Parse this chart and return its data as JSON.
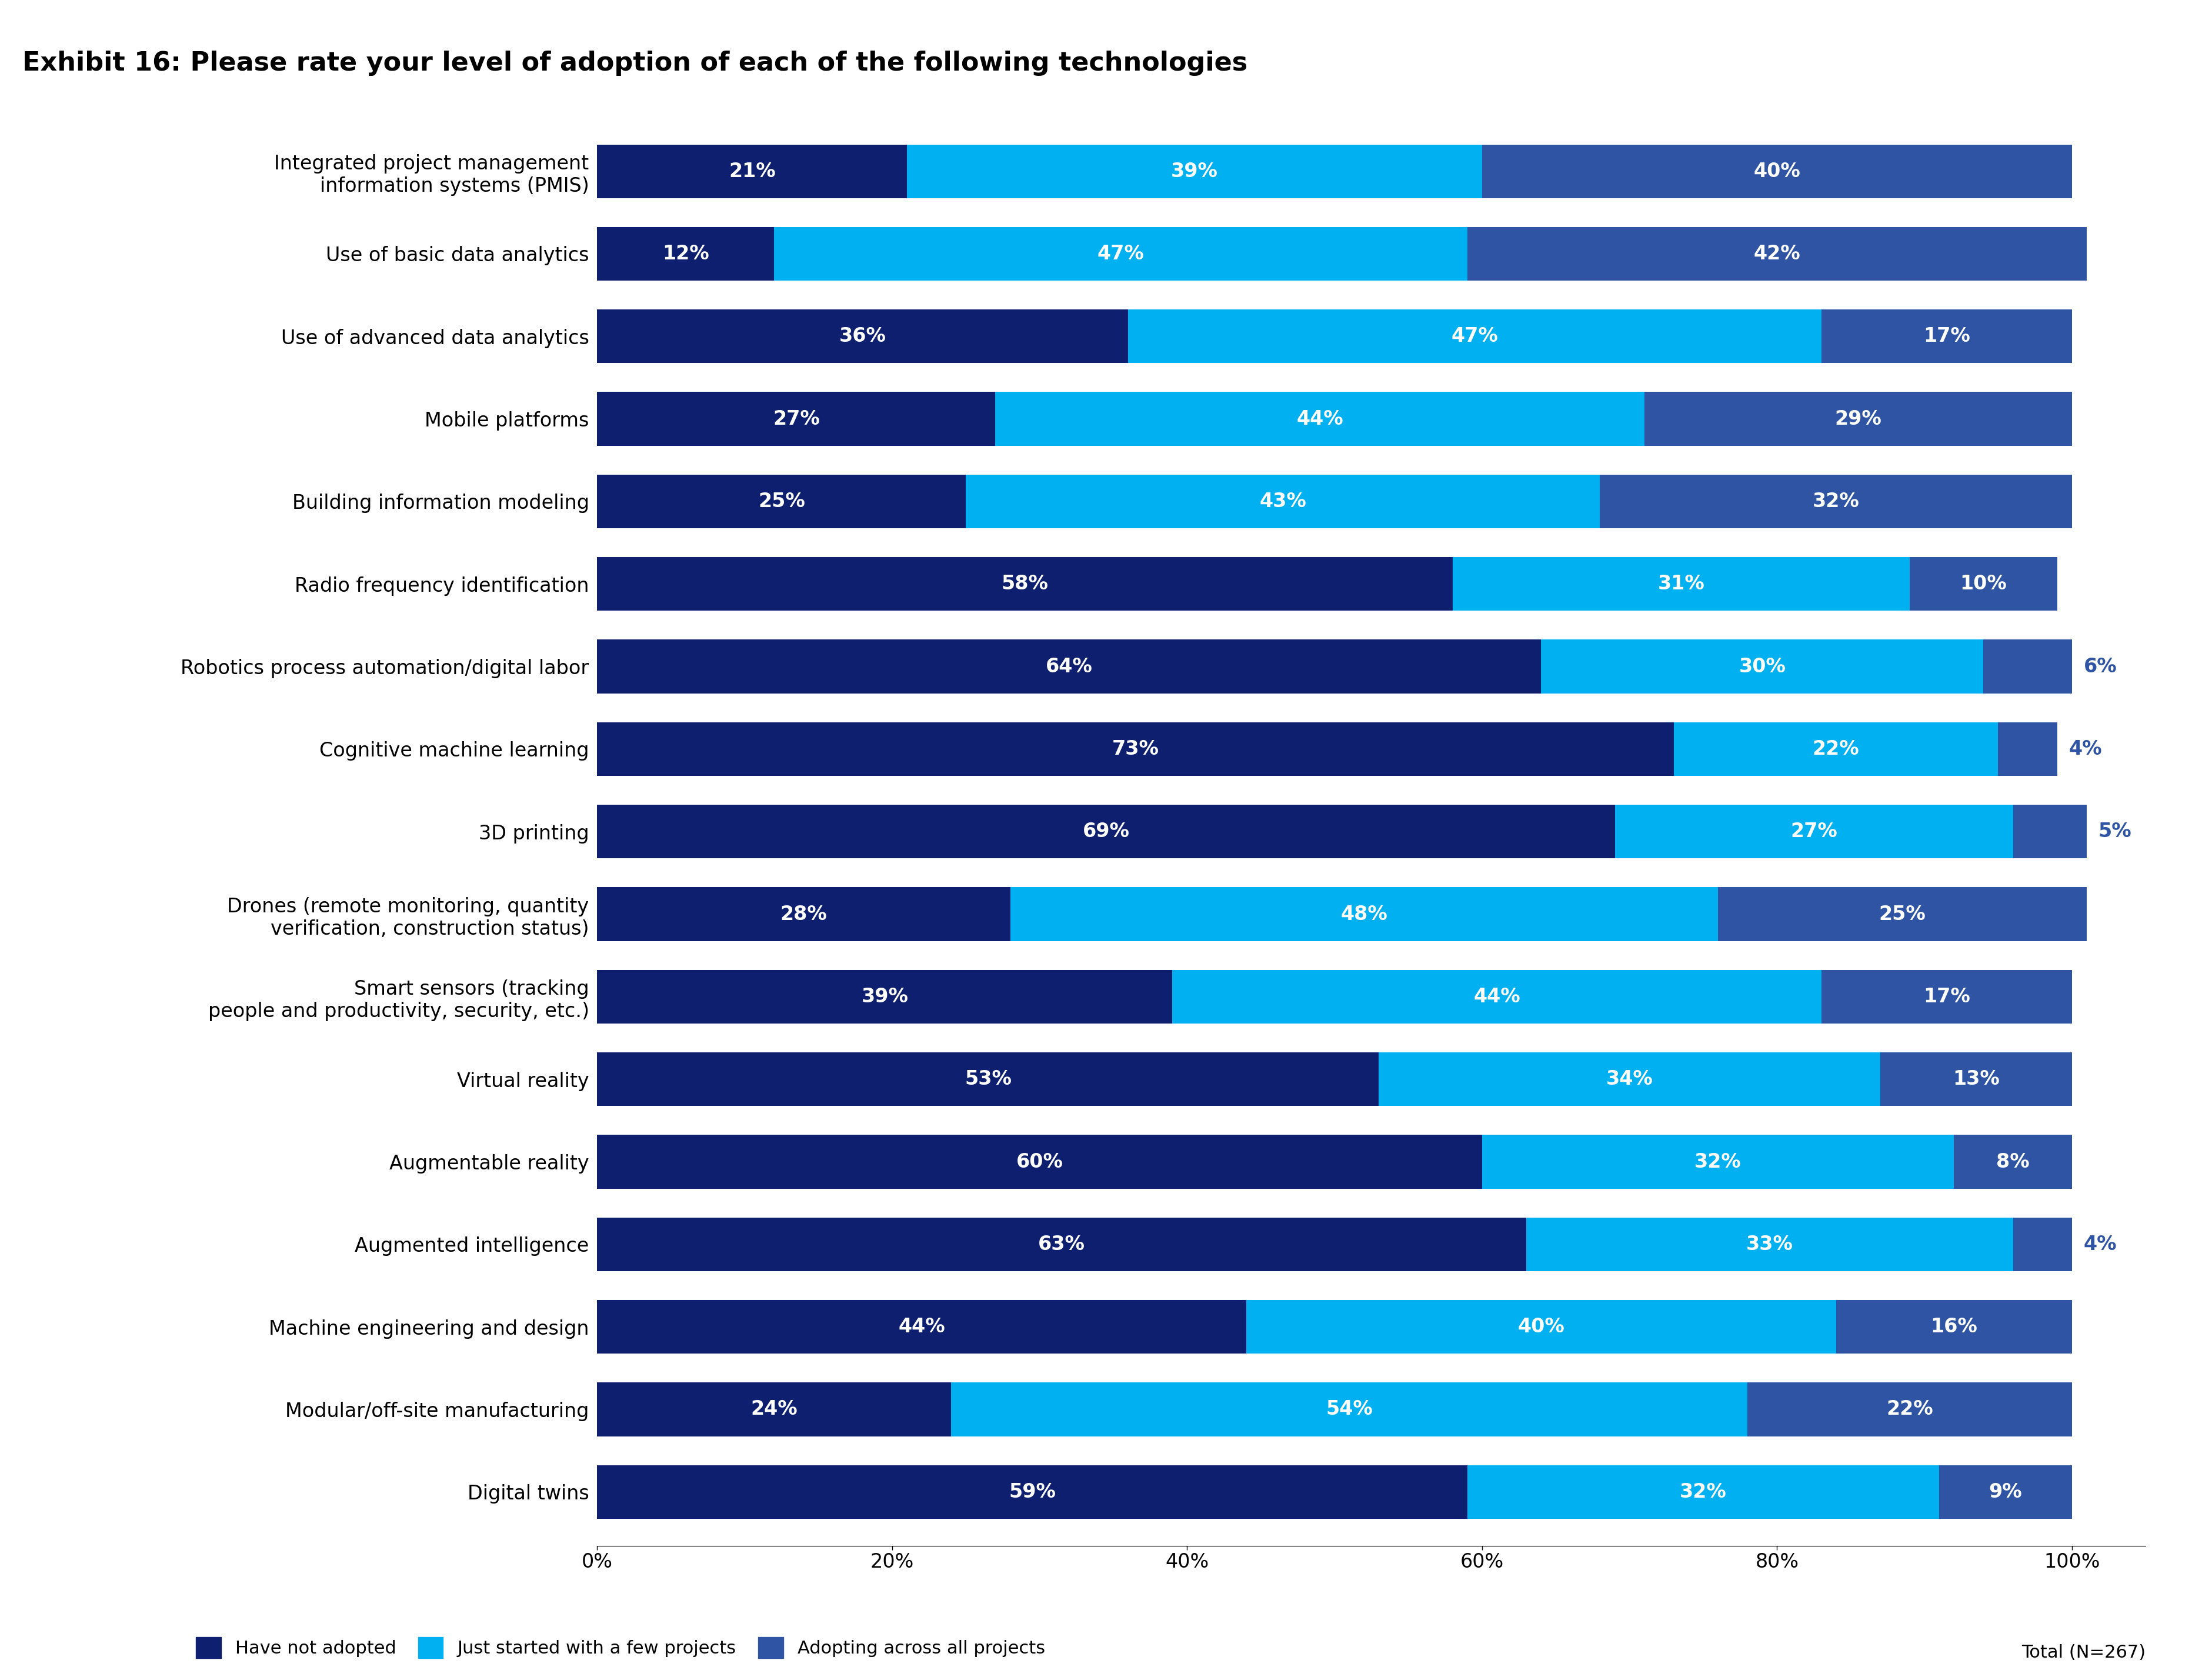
{
  "title": "Exhibit 16: Please rate your level of adoption of each of the following technologies",
  "categories": [
    "Integrated project management\ninformation systems (PMIS)",
    "Use of basic data analytics",
    "Use of advanced data analytics",
    "Mobile platforms",
    "Building information modeling",
    "Radio frequency identification",
    "Robotics process automation/digital labor",
    "Cognitive machine learning",
    "3D printing",
    "Drones (remote monitoring, quantity\nverification, construction status)",
    "Smart sensors (tracking\npeople and productivity, security, etc.)",
    "Virtual reality",
    "Augmentable reality",
    "Augmented intelligence",
    "Machine engineering and design",
    "Modular/off-site manufacturing",
    "Digital twins"
  ],
  "have_not_adopted": [
    21,
    12,
    36,
    27,
    25,
    58,
    64,
    73,
    69,
    28,
    39,
    53,
    60,
    63,
    44,
    24,
    59
  ],
  "just_started": [
    39,
    47,
    47,
    44,
    43,
    31,
    30,
    22,
    27,
    48,
    44,
    34,
    32,
    33,
    40,
    54,
    32
  ],
  "adopting_across": [
    40,
    42,
    17,
    29,
    32,
    10,
    6,
    4,
    5,
    25,
    17,
    13,
    8,
    4,
    16,
    22,
    9
  ],
  "color_have_not": "#0d1f6e",
  "color_just": "#00b0f0",
  "color_adopting": "#2e54a3",
  "legend_labels": [
    "Have not adopted",
    "Just started with a few projects",
    "Adopting across all projects",
    "Total (N=267)"
  ],
  "background_color": "#ffffff",
  "title_fontsize": 32,
  "label_fontsize": 24,
  "tick_fontsize": 24,
  "legend_fontsize": 22,
  "bar_height": 0.65
}
